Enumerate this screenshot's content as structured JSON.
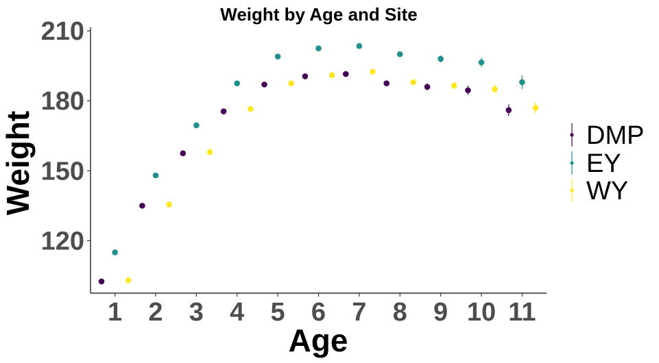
{
  "chart_data": {
    "type": "scatter",
    "title": "Weight by Age and Site",
    "xlabel": "Age",
    "ylabel": "Weight",
    "xlim": [
      0.4,
      11.6
    ],
    "ylim": [
      97.5,
      211.5
    ],
    "xticks": [
      1,
      2,
      3,
      4,
      5,
      6,
      7,
      8,
      9,
      10,
      11
    ],
    "yticks": [
      120,
      150,
      180,
      210
    ],
    "grid": false,
    "legend_position": "right",
    "dodge": 0.33,
    "series": [
      {
        "name": "DMP",
        "color": "#440154",
        "x": [
          1,
          2,
          3,
          4,
          5,
          6,
          7,
          8,
          9,
          10,
          11
        ],
        "y": [
          102.5,
          135.0,
          157.5,
          175.5,
          187.0,
          190.5,
          191.5,
          187.5,
          186.0,
          184.5,
          176.0
        ],
        "error": [
          0.8,
          0.8,
          0.8,
          0.8,
          0.8,
          1.0,
          1.2,
          1.2,
          1.5,
          2.0,
          2.5
        ]
      },
      {
        "name": "EY",
        "color": "#21908c",
        "x": [
          1,
          2,
          3,
          4,
          5,
          6,
          7,
          8,
          9,
          10,
          11
        ],
        "y": [
          115.0,
          148.0,
          169.5,
          187.5,
          199.0,
          202.5,
          203.5,
          200.0,
          198.0,
          196.5,
          188.0
        ],
        "error": [
          0.8,
          0.8,
          0.8,
          0.8,
          0.8,
          0.8,
          0.9,
          1.2,
          1.5,
          2.0,
          3.0
        ]
      },
      {
        "name": "WY",
        "color": "#fde725",
        "x": [
          1,
          2,
          3,
          4,
          5,
          6,
          7,
          8,
          9,
          10,
          11
        ],
        "y": [
          103.0,
          135.5,
          158.0,
          176.5,
          187.5,
          191.0,
          192.5,
          188.0,
          186.5,
          185.0,
          177.0
        ],
        "error": [
          0.8,
          0.8,
          0.8,
          0.8,
          0.8,
          0.9,
          1.0,
          1.2,
          1.5,
          2.0,
          2.5
        ]
      }
    ]
  }
}
